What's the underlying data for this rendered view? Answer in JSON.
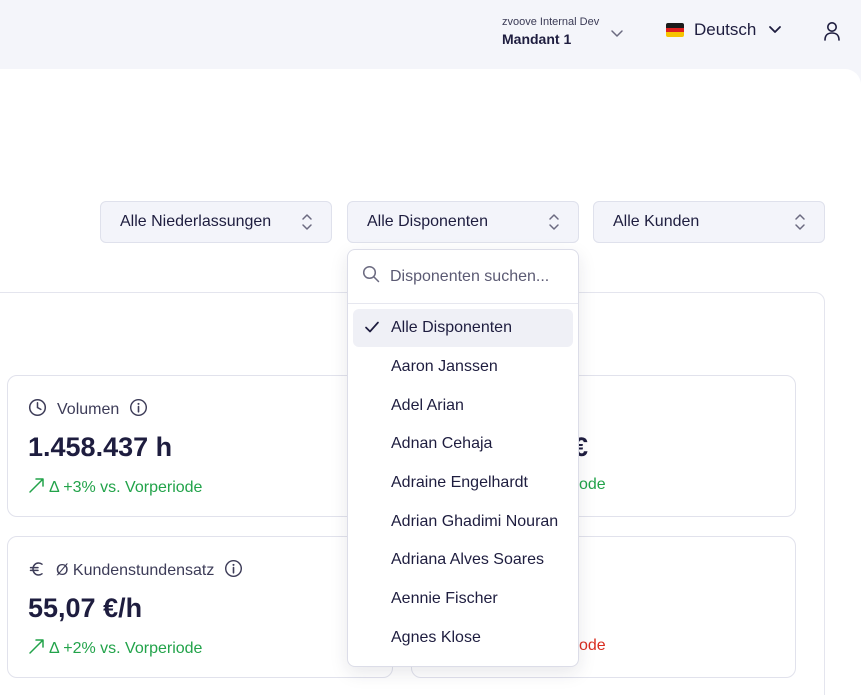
{
  "header": {
    "tenant_sub": "zvoove Internal Dev",
    "tenant_main": "Mandant 1",
    "language": "Deutsch"
  },
  "filters": {
    "branches": "Alle Niederlassungen",
    "dispatchers": "Alle Disponenten",
    "customers": "Alle Kunden"
  },
  "kpis": {
    "volume": {
      "title": "Volumen",
      "value": "1.458.437 h",
      "delta": "Δ +3% vs. Vorperiode"
    },
    "right_top": {
      "value_partial": "€",
      "delta_partial": "ode"
    },
    "rate": {
      "title": "Ø Kundenstundensatz",
      "value": "55,07 €/h",
      "delta": "Δ +2% vs. Vorperiode"
    },
    "right_bottom": {
      "delta_partial": "ode"
    }
  },
  "dropdown": {
    "search_placeholder": "Disponenten suchen...",
    "items": [
      "Alle Disponenten",
      "Aaron Janssen",
      "Adel Arian",
      "Adnan Cehaja",
      "Adraine Engelhardt",
      "Adrian Ghadimi Nouran",
      "Adriana Alves Soares",
      "Aennie Fischer",
      "Agnes Klose"
    ],
    "selected_index": 0
  },
  "colors": {
    "background": "#f4f5fa",
    "text_primary": "#1e1d3f",
    "positive": "#22a34a",
    "negative": "#d92d20",
    "select_bg": "#f3f4fa"
  }
}
